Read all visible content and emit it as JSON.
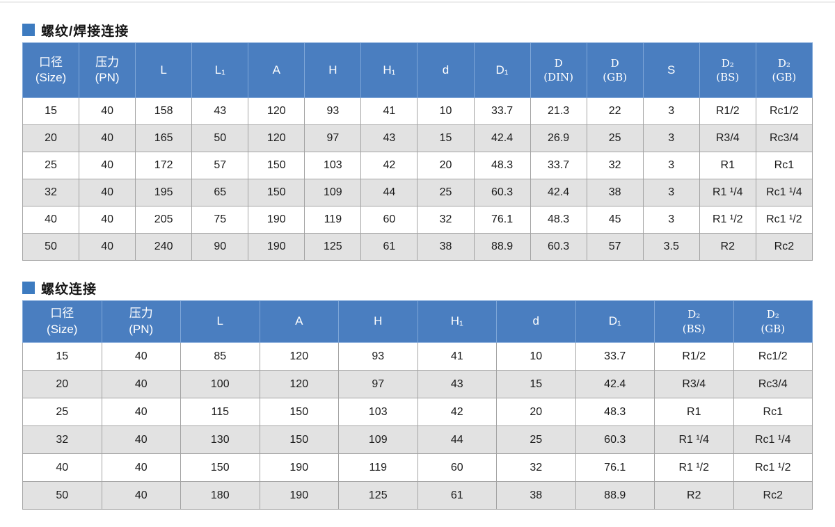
{
  "page": {
    "accent_color": "#4a7ec0",
    "alt_row_color": "#e2e2e2",
    "bullet_color": "#3d7bc0"
  },
  "sections": [
    {
      "title": "螺纹/焊接连接",
      "columns": [
        {
          "label": "口径\n(Size)"
        },
        {
          "label": "压力\n(PN)"
        },
        {
          "label": "L"
        },
        {
          "label": "L₁"
        },
        {
          "label": "A"
        },
        {
          "label": "H"
        },
        {
          "label": "H₁"
        },
        {
          "label": "d"
        },
        {
          "label": "D₁"
        },
        {
          "label": "D\n(DIN)",
          "serif": true
        },
        {
          "label": "D\n(GB)",
          "serif": true
        },
        {
          "label": "S"
        },
        {
          "label": "D₂\n(BS)",
          "serif": true
        },
        {
          "label": "D₂\n(GB)",
          "serif": true
        }
      ],
      "rows": [
        [
          "15",
          "40",
          "158",
          "43",
          "120",
          "93",
          "41",
          "10",
          "33.7",
          "21.3",
          "22",
          "3",
          "R1/2",
          "Rc1/2"
        ],
        [
          "20",
          "40",
          "165",
          "50",
          "120",
          "97",
          "43",
          "15",
          "42.4",
          "26.9",
          "25",
          "3",
          "R3/4",
          "Rc3/4"
        ],
        [
          "25",
          "40",
          "172",
          "57",
          "150",
          "103",
          "42",
          "20",
          "48.3",
          "33.7",
          "32",
          "3",
          "R1",
          "Rc1"
        ],
        [
          "32",
          "40",
          "195",
          "65",
          "150",
          "109",
          "44",
          "25",
          "60.3",
          "42.4",
          "38",
          "3",
          "R1 ¹/4",
          "Rc1 ¹/4"
        ],
        [
          "40",
          "40",
          "205",
          "75",
          "190",
          "119",
          "60",
          "32",
          "76.1",
          "48.3",
          "45",
          "3",
          "R1 ¹/2",
          "Rc1 ¹/2"
        ],
        [
          "50",
          "40",
          "240",
          "90",
          "190",
          "125",
          "61",
          "38",
          "88.9",
          "60.3",
          "57",
          "3.5",
          "R2",
          "Rc2"
        ]
      ]
    },
    {
      "title": "螺纹连接",
      "columns": [
        {
          "label": "口径\n(Size)"
        },
        {
          "label": "压力\n(PN)"
        },
        {
          "label": "L"
        },
        {
          "label": "A"
        },
        {
          "label": "H"
        },
        {
          "label": "H₁"
        },
        {
          "label": "d"
        },
        {
          "label": "D₁"
        },
        {
          "label": "D₂\n(BS)",
          "serif": true
        },
        {
          "label": "D₂\n(GB)",
          "serif": true
        }
      ],
      "rows": [
        [
          "15",
          "40",
          "85",
          "120",
          "93",
          "41",
          "10",
          "33.7",
          "R1/2",
          "Rc1/2"
        ],
        [
          "20",
          "40",
          "100",
          "120",
          "97",
          "43",
          "15",
          "42.4",
          "R3/4",
          "Rc3/4"
        ],
        [
          "25",
          "40",
          "115",
          "150",
          "103",
          "42",
          "20",
          "48.3",
          "R1",
          "Rc1"
        ],
        [
          "32",
          "40",
          "130",
          "150",
          "109",
          "44",
          "25",
          "60.3",
          "R1 ¹/4",
          "Rc1 ¹/4"
        ],
        [
          "40",
          "40",
          "150",
          "190",
          "119",
          "60",
          "32",
          "76.1",
          "R1 ¹/2",
          "Rc1 ¹/2"
        ],
        [
          "50",
          "40",
          "180",
          "190",
          "125",
          "61",
          "38",
          "88.9",
          "R2",
          "Rc2"
        ]
      ]
    }
  ]
}
